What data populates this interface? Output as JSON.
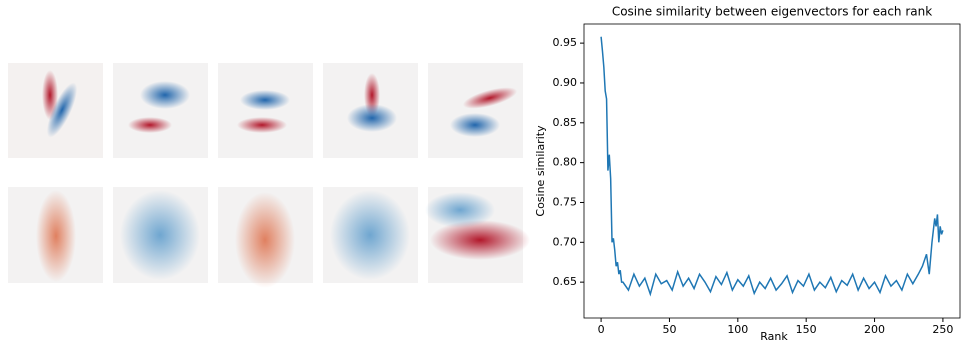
{
  "chart_data": {
    "type": "line",
    "title": "Cosine similarity between eigenvectors for each rank",
    "x_label": "Rank",
    "y_label": "Cosine similarity",
    "xlim": [
      -12.5,
      262.5
    ],
    "xticks": [
      0,
      50,
      100,
      150,
      200,
      250
    ],
    "ylim": [
      0.605,
      0.974
    ],
    "yticks": [
      0.65,
      {
        "value": 0.7,
        "label": "0.70"
      },
      0.75,
      {
        "value": 0.8,
        "label": "0.80"
      },
      0.85,
      {
        "value": 0.9,
        "label": "0.90"
      },
      0.95
    ],
    "color": "#1f77b4",
    "grid": false,
    "x": [
      0,
      1,
      2,
      3,
      4,
      5,
      6,
      7,
      8,
      9,
      10,
      11,
      12,
      13,
      14,
      15,
      16,
      20,
      24,
      28,
      32,
      36,
      40,
      44,
      48,
      52,
      56,
      60,
      64,
      68,
      72,
      76,
      80,
      84,
      88,
      92,
      96,
      100,
      104,
      108,
      112,
      116,
      120,
      124,
      128,
      132,
      136,
      140,
      144,
      148,
      152,
      156,
      160,
      164,
      168,
      172,
      176,
      180,
      184,
      188,
      192,
      196,
      200,
      204,
      208,
      212,
      216,
      220,
      224,
      228,
      232,
      235,
      238,
      240,
      242,
      244,
      245,
      246,
      247,
      248,
      249,
      250
    ],
    "values": [
      0.958,
      0.94,
      0.92,
      0.89,
      0.88,
      0.79,
      0.81,
      0.78,
      0.7,
      0.705,
      0.69,
      0.67,
      0.675,
      0.66,
      0.665,
      0.65,
      0.65,
      0.64,
      0.66,
      0.645,
      0.655,
      0.635,
      0.66,
      0.648,
      0.652,
      0.64,
      0.663,
      0.645,
      0.655,
      0.642,
      0.66,
      0.65,
      0.638,
      0.657,
      0.647,
      0.662,
      0.64,
      0.653,
      0.645,
      0.658,
      0.636,
      0.65,
      0.642,
      0.655,
      0.64,
      0.648,
      0.658,
      0.637,
      0.652,
      0.645,
      0.66,
      0.64,
      0.65,
      0.643,
      0.656,
      0.638,
      0.652,
      0.646,
      0.66,
      0.64,
      0.655,
      0.642,
      0.65,
      0.637,
      0.658,
      0.645,
      0.652,
      0.64,
      0.66,
      0.648,
      0.66,
      0.67,
      0.685,
      0.66,
      0.7,
      0.73,
      0.72,
      0.735,
      0.7,
      0.72,
      0.71,
      0.715
    ]
  }
}
